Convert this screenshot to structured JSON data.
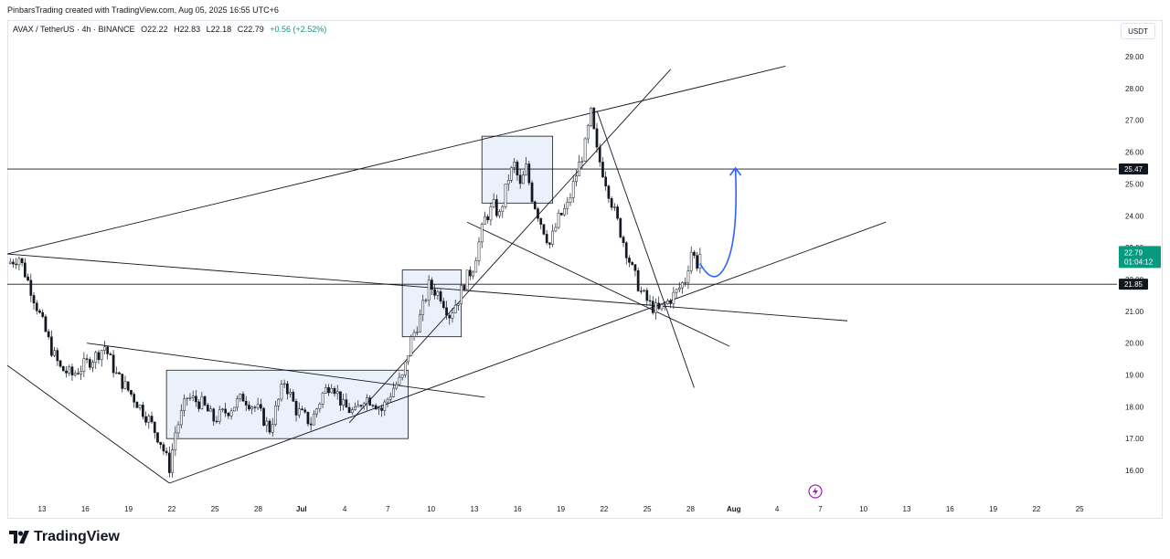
{
  "caption": "PinbarsTrading created with TradingView.com, Aug 05, 2025 16:55 UTC+6",
  "legend": {
    "symbol": "AVAX / TetherUS · 4h · BINANCE",
    "open": "O22.22",
    "high": "H22.83",
    "low": "L22.18",
    "close": "C22.79",
    "change": "+0.56 (+2.52%)"
  },
  "currency_button": "USDT",
  "brand": "TradingView",
  "icons": {
    "logo": "tradingview-logo-icon",
    "flash": "lightning-icon"
  },
  "colors": {
    "up": "#089981",
    "down": "#f23645",
    "current": "#089981",
    "projection": "#2962ff",
    "line": "#131722",
    "box": "#dbe5f5"
  },
  "chart_data": {
    "type": "candlestick",
    "symbol": "AVAX / TetherUS",
    "interval": "4h",
    "exchange": "BINANCE",
    "ylim": [
      15.3,
      29.4
    ],
    "y_ticks": [
      "29.00",
      "28.00",
      "27.00",
      "26.00",
      "25.00",
      "24.00",
      "23.00",
      "22.00",
      "21.00",
      "20.00",
      "19.00",
      "18.00",
      "17.00",
      "16.00"
    ],
    "x_ticks": [
      "13",
      "16",
      "19",
      "22",
      "25",
      "28",
      "Jul",
      "4",
      "7",
      "10",
      "13",
      "16",
      "19",
      "22",
      "25",
      "28",
      "Aug",
      "4",
      "7",
      "10",
      "13",
      "16",
      "19",
      "22",
      "25"
    ],
    "last_price": {
      "value": "22.79",
      "countdown": "01:04:12"
    },
    "price_labels": [
      "25.47",
      "21.85"
    ],
    "horizontal_levels": [
      25.47,
      21.85
    ],
    "price_path": [
      [
        0,
        22.5
      ],
      [
        4,
        22.7
      ],
      [
        8,
        21.7
      ],
      [
        15,
        19.8
      ],
      [
        18,
        19.2
      ],
      [
        22,
        19.0
      ],
      [
        26,
        19.3
      ],
      [
        30,
        19.6
      ],
      [
        33,
        19.9
      ],
      [
        37,
        19.0
      ],
      [
        42,
        18.4
      ],
      [
        48,
        17.6
      ],
      [
        52,
        16.9
      ],
      [
        55,
        16.1
      ],
      [
        57,
        17.2
      ],
      [
        61,
        18.3
      ],
      [
        66,
        18.1
      ],
      [
        70,
        17.6
      ],
      [
        75,
        17.9
      ],
      [
        80,
        18.3
      ],
      [
        85,
        17.9
      ],
      [
        89,
        17.3
      ],
      [
        94,
        18.8
      ],
      [
        98,
        17.9
      ],
      [
        103,
        17.5
      ],
      [
        107,
        18.4
      ],
      [
        110,
        18.8
      ],
      [
        114,
        18.0
      ],
      [
        118,
        17.8
      ],
      [
        121,
        18.3
      ],
      [
        124,
        18.2
      ],
      [
        127,
        17.9
      ],
      [
        131,
        18.6
      ],
      [
        134,
        18.9
      ],
      [
        137,
        20.1
      ],
      [
        140,
        20.8
      ],
      [
        143,
        21.8
      ],
      [
        147,
        21.5
      ],
      [
        150,
        20.9
      ],
      [
        153,
        21.4
      ],
      [
        155,
        21.9
      ],
      [
        158,
        22.4
      ],
      [
        162,
        23.9
      ],
      [
        165,
        24.3
      ],
      [
        167,
        24.0
      ],
      [
        170,
        25.2
      ],
      [
        172,
        25.6
      ],
      [
        174,
        24.9
      ],
      [
        176,
        25.5
      ],
      [
        178,
        24.6
      ],
      [
        181,
        23.8
      ],
      [
        184,
        23.1
      ],
      [
        187,
        23.9
      ],
      [
        190,
        24.3
      ],
      [
        193,
        25.3
      ],
      [
        196,
        26.2
      ],
      [
        198,
        27.2
      ],
      [
        200,
        26.0
      ],
      [
        203,
        25.1
      ],
      [
        206,
        24.1
      ],
      [
        209,
        23.2
      ],
      [
        212,
        22.3
      ],
      [
        215,
        21.6
      ],
      [
        218,
        21.2
      ],
      [
        221,
        21.0
      ],
      [
        224,
        21.3
      ],
      [
        227,
        21.6
      ],
      [
        230,
        22.0
      ],
      [
        232,
        22.9
      ],
      [
        234,
        22.5
      ],
      [
        235,
        22.79
      ]
    ],
    "rectangles": [
      {
        "t0": 54,
        "t1": 136,
        "low": 17.0,
        "high": 19.15
      },
      {
        "t0": 134,
        "t1": 154,
        "low": 20.2,
        "high": 22.3
      },
      {
        "t0": 161,
        "t1": 185,
        "low": 24.4,
        "high": 26.5
      }
    ],
    "trendlines": [
      {
        "t0": 0,
        "p0": 22.8,
        "t1": 264,
        "p1": 28.7
      },
      {
        "t0": 0,
        "p0": 22.8,
        "t1": 285,
        "p1": 20.7
      },
      {
        "t0": 0,
        "p0": 19.3,
        "t1": 55,
        "p1": 15.6
      },
      {
        "t0": 55,
        "p0": 15.6,
        "t1": 298,
        "p1": 23.8
      },
      {
        "t0": 27,
        "p0": 20.0,
        "t1": 162,
        "p1": 18.3
      },
      {
        "t0": 116,
        "p0": 17.5,
        "t1": 225,
        "p1": 28.6
      },
      {
        "t0": 156,
        "p0": 23.8,
        "t1": 245,
        "p1": 19.9
      },
      {
        "t0": 200,
        "p0": 27.3,
        "t1": 233,
        "p1": 18.6
      }
    ],
    "projection": [
      [
        235,
        22.5
      ],
      [
        240,
        21.85
      ],
      [
        244,
        22.5
      ],
      [
        247,
        25.5
      ]
    ]
  }
}
